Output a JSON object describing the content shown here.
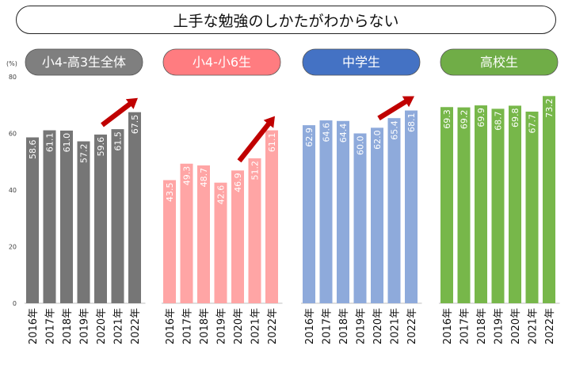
{
  "title": "上手な勉強のしかたがわからない",
  "y_unit": "(%)",
  "y_ticks": [
    0,
    20,
    40,
    60,
    80
  ],
  "chart_data": [
    {
      "type": "bar",
      "title": "小4-高3生全体",
      "categories": [
        "2016年",
        "2017年",
        "2018年",
        "2019年",
        "2020年",
        "2021年",
        "2022年"
      ],
      "values": [
        58.6,
        61.1,
        61.0,
        57.2,
        59.6,
        61.5,
        67.5
      ],
      "value_labels": [
        "58.6",
        "61.1",
        "61.0",
        "57.2",
        "59.6",
        "61.5",
        "67.5"
      ],
      "ylim": [
        0,
        80
      ],
      "header_color": "#7f7f7f",
      "bar_color": "#767676",
      "trend_arrow": true
    },
    {
      "type": "bar",
      "title": "小4-小6生",
      "categories": [
        "2016年",
        "2017年",
        "2018年",
        "2019年",
        "2020年",
        "2021年",
        "2022年"
      ],
      "values": [
        43.5,
        49.3,
        48.7,
        42.6,
        46.9,
        51.2,
        61.1
      ],
      "value_labels": [
        "43.5",
        "49.3",
        "48.7",
        "42.6",
        "46.9",
        "51.2",
        "61.1"
      ],
      "ylim": [
        0,
        80
      ],
      "header_color": "#ff7c80",
      "bar_color": "#ffa5a5",
      "trend_arrow": true
    },
    {
      "type": "bar",
      "title": "中学生",
      "categories": [
        "2016年",
        "2017年",
        "2018年",
        "2019年",
        "2020年",
        "2021年",
        "2022年"
      ],
      "values": [
        62.9,
        64.6,
        64.4,
        60.0,
        62.0,
        65.4,
        68.1
      ],
      "value_labels": [
        "62.9",
        "64.6",
        "64.4",
        "60.0",
        "62.0",
        "65.4",
        "68.1"
      ],
      "ylim": [
        0,
        80
      ],
      "header_color": "#4472c4",
      "bar_color": "#8eaadb",
      "trend_arrow": true
    },
    {
      "type": "bar",
      "title": "高校生",
      "categories": [
        "2016年",
        "2017年",
        "2018年",
        "2019年",
        "2020年",
        "2021年",
        "2022年"
      ],
      "values": [
        69.3,
        69.2,
        69.9,
        68.7,
        69.8,
        67.7,
        73.2
      ],
      "value_labels": [
        "69.3",
        "69.2",
        "69.9",
        "68.7",
        "69.8",
        "67.7",
        "73.2"
      ],
      "ylim": [
        0,
        80
      ],
      "header_color": "#70ad47",
      "bar_color": "#77b74a",
      "trend_arrow": false
    }
  ],
  "colors": {
    "arrow": "#c00000",
    "axis": "#bfbfbf",
    "tick_text": "#404040"
  }
}
